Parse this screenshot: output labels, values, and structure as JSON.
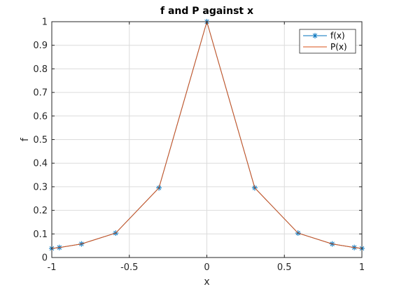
{
  "chart_data": {
    "type": "line",
    "title": "f and P against x",
    "xlabel": "x",
    "ylabel": "f",
    "xlim": [
      -1,
      1
    ],
    "ylim": [
      0,
      1
    ],
    "xticks": [
      -1,
      -0.5,
      0,
      0.5,
      1
    ],
    "xtick_labels": [
      "-1",
      "-0.5",
      "0",
      "0.5",
      "1"
    ],
    "yticks": [
      0,
      0.1,
      0.2,
      0.3,
      0.4,
      0.5,
      0.6,
      0.7,
      0.8,
      0.9,
      1
    ],
    "ytick_labels": [
      "0",
      "0.1",
      "0.2",
      "0.3",
      "0.4",
      "0.5",
      "0.6",
      "0.7",
      "0.8",
      "0.9",
      "1"
    ],
    "grid": true,
    "legend_position": "top-right",
    "series": [
      {
        "name": "f(x)",
        "color": "#0072BD",
        "marker": "asterisk",
        "x": [
          -1,
          -0.951,
          -0.809,
          -0.588,
          -0.309,
          0,
          0.309,
          0.588,
          0.809,
          0.951,
          1
        ],
        "y": [
          0.0385,
          0.0424,
          0.0576,
          0.1037,
          0.2952,
          1,
          0.2952,
          0.1037,
          0.0576,
          0.0424,
          0.0385
        ]
      },
      {
        "name": "P(x)",
        "color": "#D95319",
        "marker": "none",
        "x": [
          -1,
          -0.951,
          -0.809,
          -0.588,
          -0.309,
          0,
          0.309,
          0.588,
          0.809,
          0.951,
          1
        ],
        "y": [
          0.0385,
          0.0424,
          0.0576,
          0.1037,
          0.2952,
          1,
          0.2952,
          0.1037,
          0.0576,
          0.0424,
          0.0385
        ]
      }
    ]
  }
}
